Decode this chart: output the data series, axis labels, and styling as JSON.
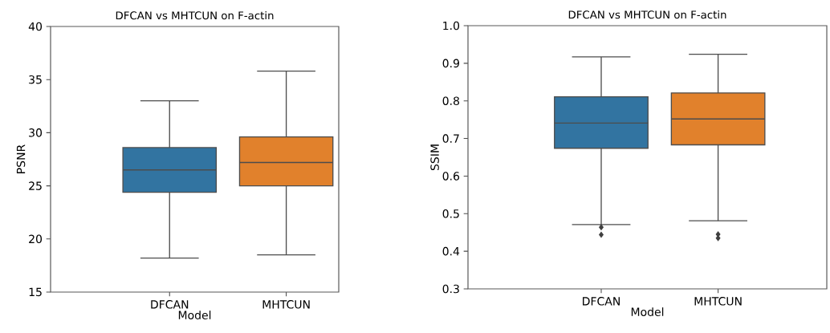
{
  "chart_data": [
    {
      "type": "box",
      "title": "DFCAN vs MHTCUN on F-actin",
      "xlabel": "Model",
      "ylabel": "PSNR",
      "categories": [
        "DFCAN",
        "MHTCUN"
      ],
      "colors": [
        "#3274a1",
        "#e1812c"
      ],
      "boxes": [
        {
          "low": 18.2,
          "q1": 24.4,
          "median": 26.5,
          "q3": 28.6,
          "high": 33.0
        },
        {
          "low": 18.5,
          "q1": 25.0,
          "median": 27.2,
          "q3": 29.6,
          "high": 35.8
        }
      ],
      "ylim": [
        15,
        40
      ],
      "yticks": [
        15,
        20,
        25,
        30,
        35,
        40
      ]
    },
    {
      "type": "box",
      "title": "DFCAN vs MHTCUN on F-actin",
      "xlabel": "Model",
      "ylabel": "SSIM",
      "categories": [
        "DFCAN",
        "MHTCUN"
      ],
      "colors": [
        "#3274a1",
        "#e1812c"
      ],
      "marker": "diamond",
      "boxes": [
        {
          "low": 0.471,
          "q1": 0.674,
          "median": 0.741,
          "q3": 0.811,
          "high": 0.917,
          "outliers": [
            0.464,
            0.444
          ]
        },
        {
          "low": 0.481,
          "q1": 0.683,
          "median": 0.752,
          "q3": 0.821,
          "high": 0.924,
          "outliers": [
            0.445,
            0.435
          ]
        }
      ],
      "ylim": [
        0.3,
        1.0
      ],
      "yticks": [
        0.3,
        0.4,
        0.5,
        0.6,
        0.7,
        0.8,
        0.9,
        {
          "value": 1.0,
          "label": "1.0"
        }
      ]
    }
  ]
}
